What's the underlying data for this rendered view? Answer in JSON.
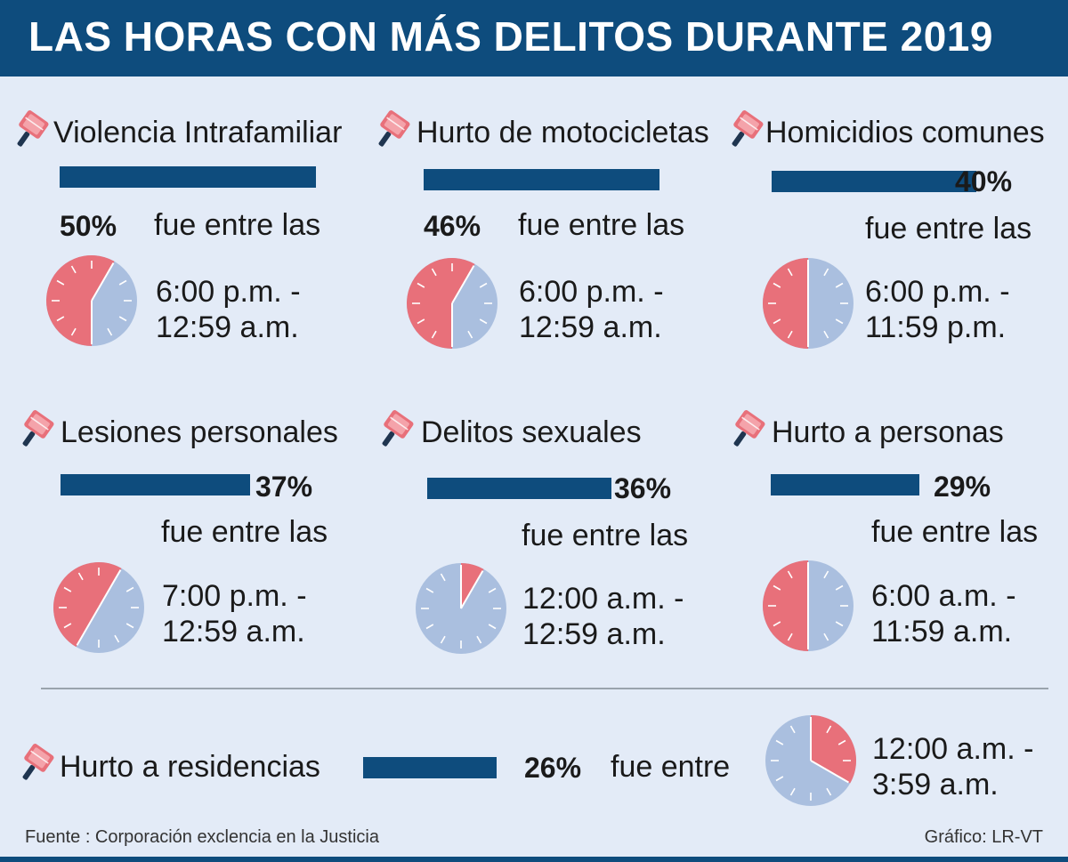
{
  "title": "LAS HORAS CON MÁS DELITOS DURANTE 2019",
  "colors": {
    "brand_blue": "#0e4c7d",
    "highlight": "#e8707a",
    "clock_face": "#aabfdf",
    "background": "#e3ebf7"
  },
  "icon": "pin-icon",
  "between_label": "fue entre las",
  "between_label_short": "fue entre",
  "chart_data": {
    "type": "bar",
    "categories": [
      "Violencia Intrafamiliar",
      "Hurto de motocicletas",
      "Homicidios comunes",
      "Lesiones personales",
      "Delitos sexuales",
      "Hurto a personas",
      "Hurto a residencias"
    ],
    "values": [
      50,
      46,
      40,
      37,
      36,
      29,
      26
    ],
    "unit": "%",
    "value_labels": [
      "50%",
      "46%",
      "40%",
      "37%",
      "36%",
      "29%",
      "26%"
    ]
  },
  "items": [
    {
      "label": "Violencia Intrafamiliar",
      "value": 50,
      "pct": "50%",
      "time_start": "6:00 p.m. -",
      "time_end": "12:59 a.m.",
      "hours": [
        18,
        25
      ]
    },
    {
      "label": "Hurto de motocicletas",
      "value": 46,
      "pct": "46%",
      "time_start": "6:00 p.m. -",
      "time_end": "12:59 a.m.",
      "hours": [
        18,
        25
      ]
    },
    {
      "label": "Homicidios comunes",
      "value": 40,
      "pct": "40%",
      "time_start": "6:00 p.m. -",
      "time_end": "11:59 p.m.",
      "hours": [
        18,
        24
      ]
    },
    {
      "label": "Lesiones personales",
      "value": 37,
      "pct": "37%",
      "time_start": "7:00 p.m. -",
      "time_end": "12:59 a.m.",
      "hours": [
        19,
        25
      ]
    },
    {
      "label": "Delitos sexuales",
      "value": 36,
      "pct": "36%",
      "time_start": "12:00 a.m. -",
      "time_end": "12:59 a.m.",
      "hours": [
        0,
        1
      ]
    },
    {
      "label": "Hurto a personas",
      "value": 29,
      "pct": "29%",
      "time_start": "6:00 a.m. -",
      "time_end": "11:59 a.m.",
      "hours": [
        6,
        12
      ]
    },
    {
      "label": "Hurto a residencias",
      "value": 26,
      "pct": "26%",
      "time_start": "12:00 a.m. -",
      "time_end": "3:59 a.m.",
      "hours": [
        0,
        4
      ]
    }
  ],
  "footer": {
    "source": "Fuente : Corporación exclencia en la Justicia",
    "credit": "Gráfico: LR-VT"
  }
}
